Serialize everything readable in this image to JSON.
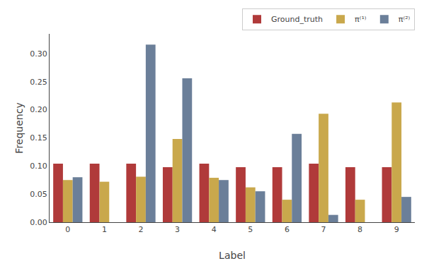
{
  "chart_data": {
    "type": "bar",
    "xlabel": "Label",
    "ylabel": "Frequency",
    "categories": [
      "0",
      "1",
      "2",
      "3",
      "4",
      "5",
      "6",
      "7",
      "8",
      "9"
    ],
    "series": [
      {
        "name": "Ground_truth",
        "color": "#b03a3a",
        "values": [
          0.104,
          0.104,
          0.104,
          0.098,
          0.104,
          0.098,
          0.098,
          0.104,
          0.098,
          0.098
        ]
      },
      {
        "name": "π⁽¹⁾",
        "color": "#c9a84c",
        "values": [
          0.075,
          0.072,
          0.081,
          0.148,
          0.079,
          0.062,
          0.04,
          0.193,
          0.04,
          0.213
        ]
      },
      {
        "name": "π⁽²⁾",
        "color": "#6b7f99",
        "values": [
          0.08,
          0.0,
          0.316,
          0.256,
          0.075,
          0.055,
          0.157,
          0.013,
          0.0,
          0.045
        ]
      }
    ],
    "ylim": [
      0,
      0.335
    ],
    "yticks": [
      {
        "value": 0.0,
        "label": "0.00"
      },
      {
        "value": 0.05,
        "label": "0.05"
      },
      {
        "value": 0.1,
        "label": "0.10"
      },
      {
        "value": 0.15,
        "label": "0.15"
      },
      {
        "value": 0.2,
        "label": "0.20"
      },
      {
        "value": 0.25,
        "label": "0.25"
      },
      {
        "value": 0.3,
        "label": "0.30"
      }
    ],
    "grid": false,
    "legend": "upper right"
  }
}
